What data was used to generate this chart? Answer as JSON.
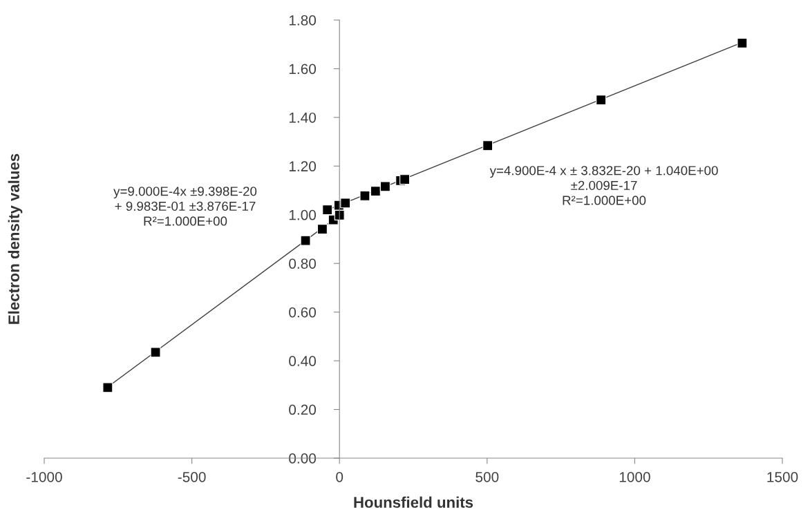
{
  "chart_data": {
    "type": "scatter",
    "xlabel": "Hounsfield units",
    "ylabel": "Electron density values",
    "series": [
      {
        "color": "#000000",
        "marker": "square",
        "x": [
          -785,
          -623,
          -115,
          -58,
          -21,
          0,
          -41,
          -2,
          20,
          86,
          122,
          155,
          207,
          221,
          502,
          886,
          1364
        ],
        "values": [
          0.29,
          0.435,
          0.894,
          0.941,
          0.979,
          0.998,
          1.02,
          1.039,
          1.048,
          1.078,
          1.097,
          1.116,
          1.14,
          1.145,
          1.284,
          1.472,
          1.705
        ]
      },
      {
        "type": "line",
        "color": "#404040",
        "x": [
          -785,
          0
        ],
        "values": [
          0.292,
          0.998
        ]
      },
      {
        "type": "line",
        "color": "#404040",
        "x": [
          -41,
          1364
        ],
        "values": [
          1.02,
          1.708
        ]
      }
    ],
    "annotations": [
      "y=9.000E-4x ±9.398E-20\n+ 9.983E-01 ±3.876E-17\nR²=1.000E+00",
      "y=4.900E-4 x ± 3.832E-20 + 1.040E+00\n±2.009E-17\nR²=1.000E+00"
    ],
    "xlim": [
      -1000,
      1500
    ],
    "xticks": [
      -1000,
      -500,
      0,
      500,
      1000,
      1500
    ],
    "ylim": [
      0,
      1.8
    ],
    "yticks": [
      {
        "value": 0,
        "label": "0.00"
      },
      {
        "value": 0.2,
        "label": "0.20"
      },
      {
        "value": 0.4,
        "label": "0.40"
      },
      {
        "value": 0.6,
        "label": "0.60"
      },
      {
        "value": 0.8,
        "label": "0.80"
      },
      {
        "value": 1.0,
        "label": "1.00"
      },
      {
        "value": 1.2,
        "label": "1.20"
      },
      {
        "value": 1.4,
        "label": "1.40"
      },
      {
        "value": 1.6,
        "label": "1.60"
      },
      {
        "value": 1.8,
        "label": "1.80"
      }
    ],
    "grid": false,
    "legend": false
  }
}
